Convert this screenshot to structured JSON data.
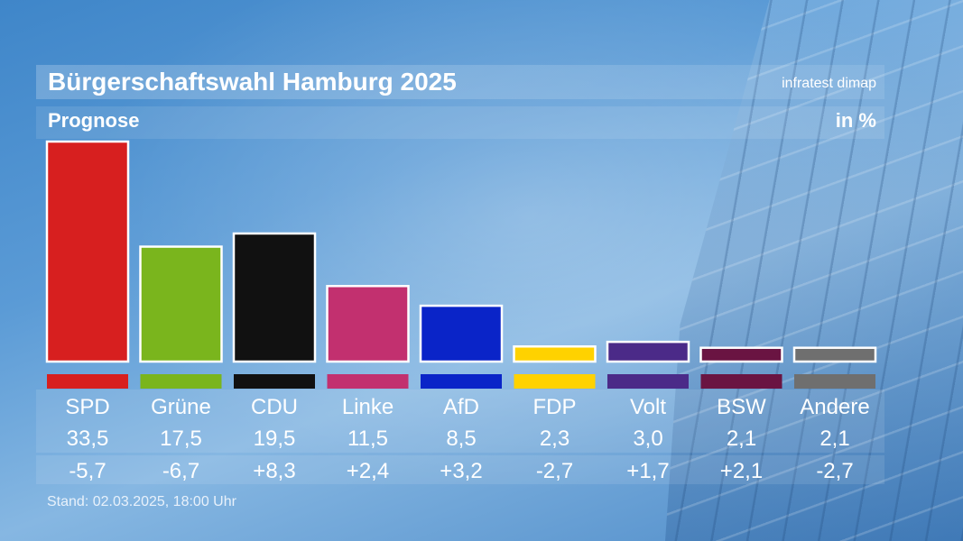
{
  "header": {
    "title": "Bürgerschaftswahl Hamburg 2025",
    "source": "infratest dimap",
    "subtitle": "Prognose",
    "unit": "in %"
  },
  "footer": {
    "stand": "Stand: 02.03.2025, 18:00 Uhr"
  },
  "chart_data": {
    "type": "bar",
    "title": "Bürgerschaftswahl Hamburg 2025",
    "subtitle": "Prognose",
    "ylabel": "in %",
    "ylim": [
      0,
      33.5
    ],
    "categories": [
      "SPD",
      "Grüne",
      "CDU",
      "Linke",
      "AfD",
      "FDP",
      "Volt",
      "BSW",
      "Andere"
    ],
    "values": [
      33.5,
      17.5,
      19.5,
      11.5,
      8.5,
      2.3,
      3.0,
      2.1,
      2.1
    ],
    "value_labels": [
      "33,5",
      "17,5",
      "19,5",
      "11,5",
      "8,5",
      "2,3",
      "3,0",
      "2,1",
      "2,1"
    ],
    "change_labels": [
      "-5,7",
      "-6,7",
      "+8,3",
      "+2,4",
      "+3,2",
      "-2,7",
      "+1,7",
      "+2,1",
      "-2,7"
    ],
    "colors": [
      "#d71f1f",
      "#7ab51d",
      "#111111",
      "#c2306f",
      "#0a24c8",
      "#ffd200",
      "#4b2a88",
      "#6a1442",
      "#6f6f6f"
    ],
    "grid": false,
    "legend": "none"
  }
}
